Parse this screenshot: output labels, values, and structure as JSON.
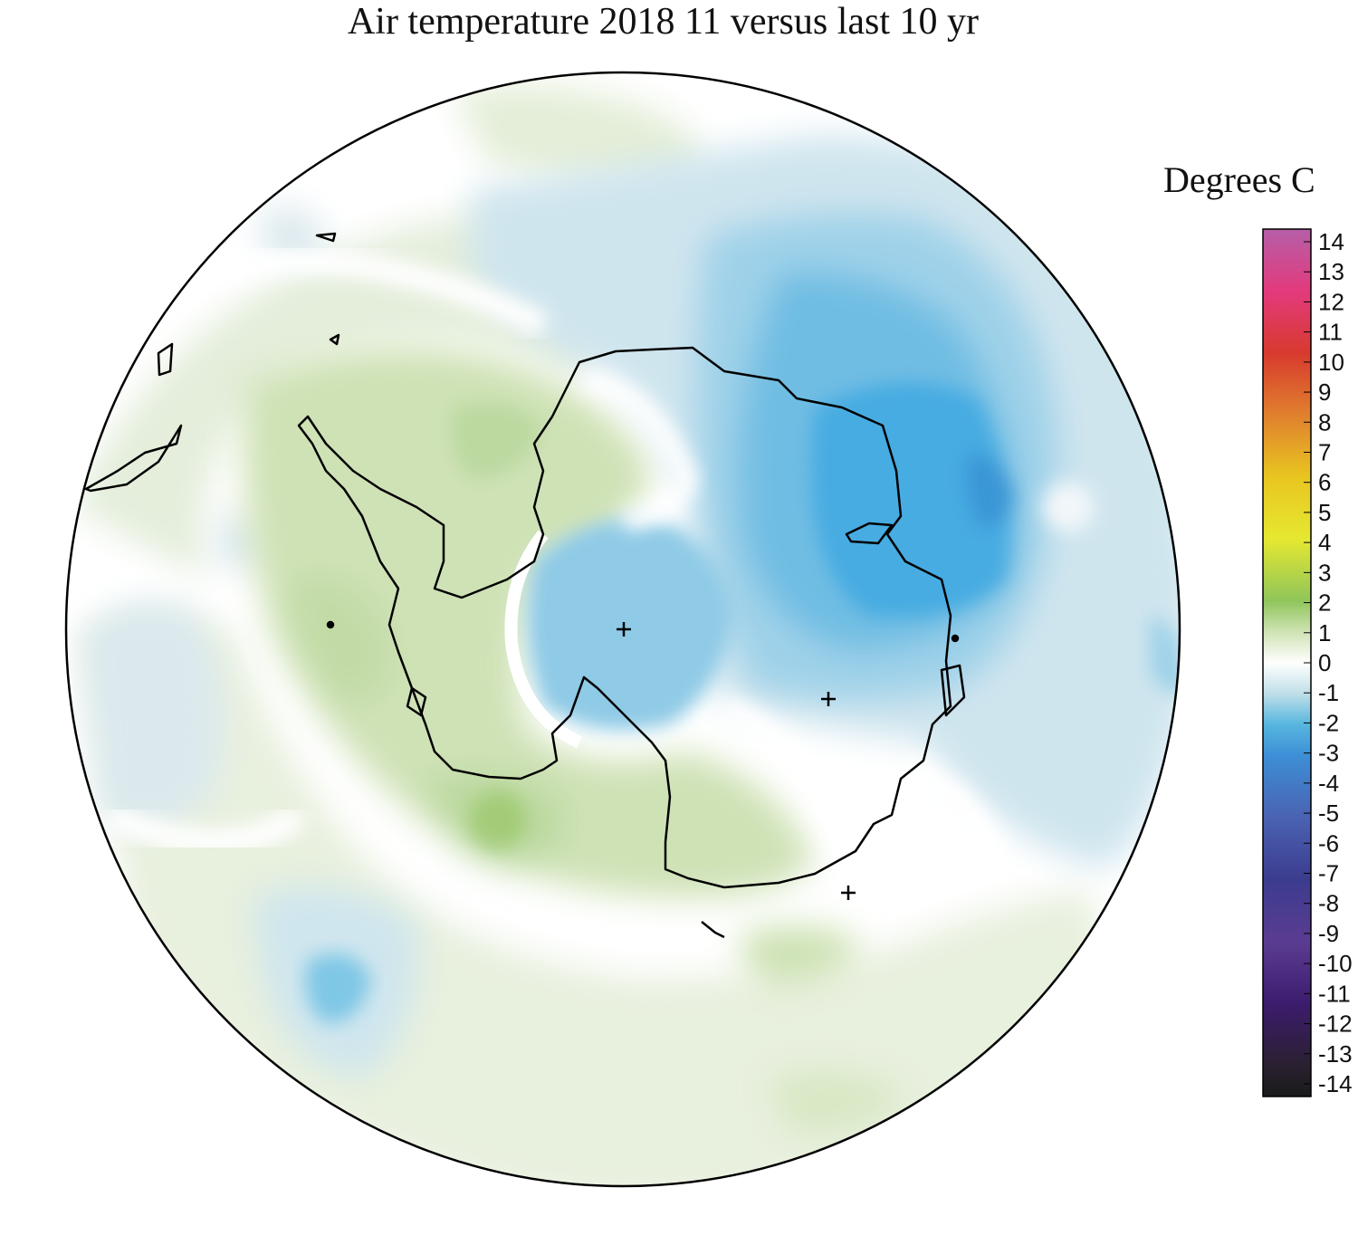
{
  "title": "Air temperature 2018 11 versus last 10 yr",
  "legend": {
    "title": "Degrees C",
    "min": -14,
    "max": 14,
    "ticks": [
      "14",
      "13",
      "12",
      "11",
      "10",
      "9",
      "8",
      "7",
      "6",
      "5",
      "4",
      "3",
      "2",
      "1",
      "0",
      "-1",
      "-2",
      "-3",
      "-4",
      "-5",
      "-6",
      "-7",
      "-8",
      "-9",
      "-10",
      "-11",
      "-12",
      "-13",
      "-14"
    ],
    "stops": [
      {
        "v": 14,
        "c": "#b55fa8"
      },
      {
        "v": 12,
        "c": "#e33a7d"
      },
      {
        "v": 10,
        "c": "#d83a2e"
      },
      {
        "v": 8,
        "c": "#e0802e"
      },
      {
        "v": 6,
        "c": "#e8c520"
      },
      {
        "v": 4,
        "c": "#e6e830"
      },
      {
        "v": 2,
        "c": "#8fc55a"
      },
      {
        "v": 1,
        "c": "#cfe3b4"
      },
      {
        "v": 0,
        "c": "#ffffff"
      },
      {
        "v": -1,
        "c": "#bfdfe8"
      },
      {
        "v": -2,
        "c": "#57b6df"
      },
      {
        "v": -3,
        "c": "#3d8fd6"
      },
      {
        "v": -5,
        "c": "#4a62b2"
      },
      {
        "v": -7,
        "c": "#3c3c8e"
      },
      {
        "v": -9,
        "c": "#5a3c92"
      },
      {
        "v": -11,
        "c": "#3c1c6e"
      },
      {
        "v": -13,
        "c": "#2a2030"
      },
      {
        "v": -14,
        "c": "#1a1a1a"
      }
    ]
  },
  "map_data": {
    "projection": "south polar stereographic",
    "field": "air temperature anomaly",
    "units": "Degrees C",
    "palette": {
      "land_outline": "#000000",
      "frame": "#000000"
    }
  }
}
